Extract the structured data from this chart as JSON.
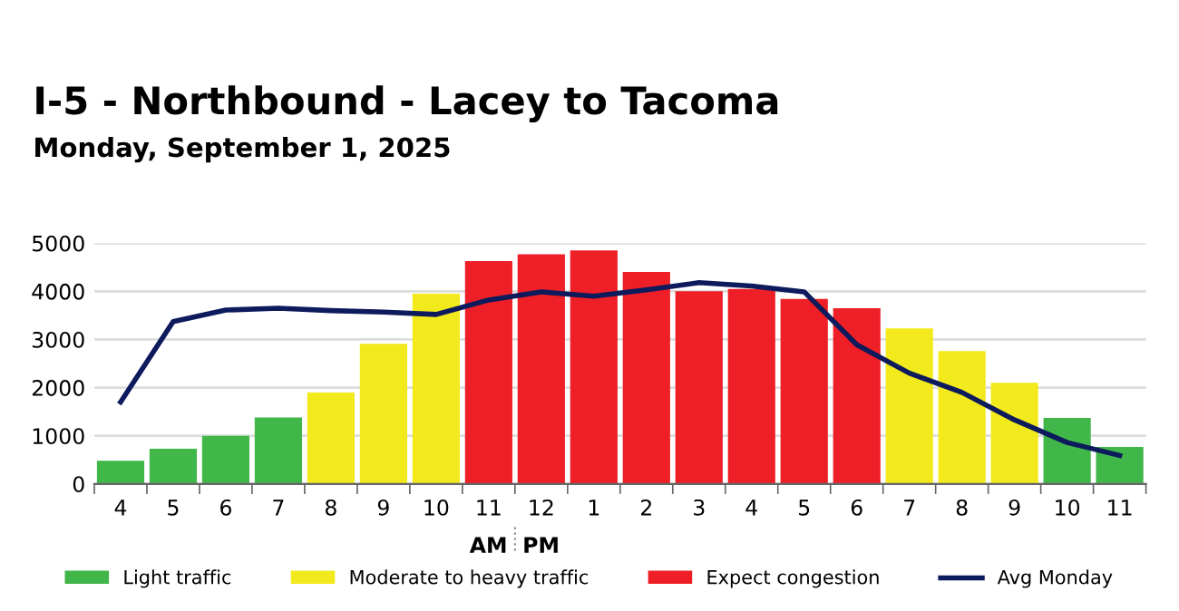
{
  "chart_data": {
    "type": "bar",
    "title": "I-5 - Northbound - Lacey to Tacoma",
    "subtitle": "Monday, September 1, 2025",
    "categories": [
      "4",
      "5",
      "6",
      "7",
      "8",
      "9",
      "10",
      "11",
      "12",
      "1",
      "2",
      "3",
      "4",
      "5",
      "6",
      "7",
      "8",
      "9",
      "10",
      "11"
    ],
    "series": [
      {
        "name": "Light traffic",
        "color": "#41b649",
        "values": [
          480,
          730,
          1000,
          1380,
          null,
          null,
          null,
          null,
          null,
          null,
          null,
          null,
          null,
          null,
          null,
          null,
          null,
          null,
          1370,
          770
        ]
      },
      {
        "name": "Moderate to heavy traffic",
        "color": "#f2ea1c",
        "values": [
          null,
          null,
          null,
          null,
          1900,
          2910,
          3950,
          null,
          null,
          null,
          null,
          null,
          null,
          null,
          null,
          3230,
          2760,
          2100,
          null,
          null
        ]
      },
      {
        "name": "Expect congestion",
        "color": "#ee1f26",
        "values": [
          null,
          null,
          null,
          null,
          null,
          null,
          null,
          4630,
          4770,
          4850,
          4400,
          4000,
          4050,
          3840,
          3650,
          null,
          null,
          null,
          null,
          null
        ]
      },
      {
        "name": "Avg Monday",
        "type": "line",
        "color": "#0d1a5c",
        "values": [
          1700,
          3370,
          3610,
          3650,
          3600,
          3570,
          3520,
          3820,
          3990,
          3900,
          4030,
          4180,
          4110,
          3990,
          2890,
          2300,
          1900,
          1330,
          860,
          590
        ]
      }
    ],
    "annotations": [
      "AM",
      "PM"
    ],
    "ylim": [
      0,
      5000
    ],
    "yticks": [
      0,
      1000,
      2000,
      3000,
      4000,
      5000
    ],
    "grid": "y",
    "legend": "bottom",
    "marker": "none",
    "line_style": "solid"
  }
}
